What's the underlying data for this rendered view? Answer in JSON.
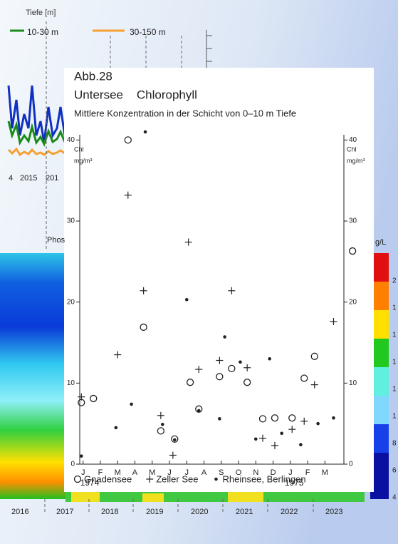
{
  "background": {
    "depth_legend_title": "Tiefe [m]",
    "depth_legend": [
      {
        "label": "10-30 m",
        "color": "#1a8a1a"
      },
      {
        "label": "30-150 m",
        "color": "#f5a030"
      }
    ],
    "top_years": [
      "4",
      "2015",
      "201"
    ],
    "heatmap_title": "Phos",
    "colorbar_unit": "g/L",
    "colorbar_labels": [
      "2",
      "1",
      "1",
      "1",
      "1",
      "1",
      "8",
      "6",
      "4"
    ],
    "bottom_years": [
      "2016",
      "2017",
      "2018",
      "2019",
      "2020",
      "2021",
      "2022",
      "2023"
    ]
  },
  "chart_data": {
    "type": "scatter",
    "figure_label": "Abb.28",
    "title": "Untersee    Chlorophyll",
    "subtitle": "Mittlere Konzentration in der Schicht von 0–10 m Tiefe",
    "ylabel": [
      "Chl",
      "mg/m³"
    ],
    "xlim": [
      -0.4,
      15.8
    ],
    "xticks": [
      {
        "value": 0,
        "label": "J"
      },
      {
        "value": 1,
        "label": "F"
      },
      {
        "value": 2,
        "label": "M"
      },
      {
        "value": 3,
        "label": "A"
      },
      {
        "value": 4,
        "label": "M"
      },
      {
        "value": 5,
        "label": "J"
      },
      {
        "value": 6,
        "label": "J"
      },
      {
        "value": 7,
        "label": "A"
      },
      {
        "value": 8,
        "label": "S"
      },
      {
        "value": 9,
        "label": "O"
      },
      {
        "value": 10,
        "label": "N"
      },
      {
        "value": 11,
        "label": "D"
      },
      {
        "value": 12,
        "label": "J"
      },
      {
        "value": 13,
        "label": "F"
      },
      {
        "value": 14,
        "label": "M"
      }
    ],
    "year_labels": [
      {
        "value": 0,
        "label": "1974"
      },
      {
        "value": 12,
        "label": "1975"
      }
    ],
    "ylim": [
      0,
      41
    ],
    "yticks": [
      0,
      10,
      20,
      30,
      40
    ],
    "grid": false,
    "series": [
      {
        "name": "Gnadensee",
        "marker": "circle",
        "color": "#222222",
        "x": [
          -0.1,
          0.6,
          2.6,
          3.5,
          4.5,
          5.3,
          6.2,
          6.7,
          7.9,
          8.6,
          9.5,
          10.4,
          11.1,
          12.1,
          12.8,
          13.4,
          15.6
        ],
        "values": [
          7.6,
          8.1,
          40,
          16.9,
          4.1,
          3.1,
          10.1,
          6.8,
          10.8,
          11.8,
          10.1,
          5.6,
          5.7,
          5.7,
          10.6,
          13.3,
          26.3
        ]
      },
      {
        "name": "Zeller See",
        "marker": "plus",
        "color": "#222222",
        "x": [
          -0.1,
          2.0,
          2.6,
          3.5,
          4.5,
          5.2,
          6.1,
          6.7,
          7.9,
          8.6,
          9.5,
          10.4,
          11.1,
          12.1,
          12.8,
          13.4,
          14.5
        ],
        "values": [
          8.3,
          13.5,
          33.2,
          21.4,
          6.0,
          1.1,
          27.4,
          11.7,
          12.8,
          21.4,
          11.9,
          3.2,
          2.3,
          4.3,
          5.3,
          9.8,
          17.6
        ]
      },
      {
        "name": "Rheinsee, Berlingen",
        "marker": "dot",
        "color": "#222222",
        "x": [
          -0.1,
          1.9,
          2.8,
          3.6,
          4.6,
          5.3,
          6.0,
          6.7,
          7.9,
          8.2,
          9.1,
          10.0,
          10.8,
          11.5,
          12.6,
          13.6,
          14.5
        ],
        "values": [
          1.0,
          4.5,
          7.4,
          41.0,
          4.9,
          3.0,
          20.3,
          6.6,
          5.6,
          15.7,
          12.6,
          3.1,
          13.0,
          3.8,
          2.4,
          5.0,
          5.7
        ]
      }
    ]
  }
}
